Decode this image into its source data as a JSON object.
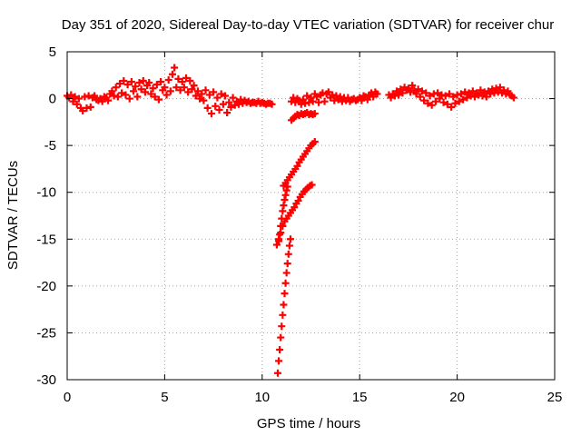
{
  "chart_data": {
    "type": "scatter",
    "title": "Day 351 of 2020, Sidereal Day-to-day VTEC variation (SDTVAR) for receiver chur",
    "xlabel": "GPS time / hours",
    "ylabel": "SDTVAR / TECUs",
    "xlim": [
      0,
      25
    ],
    "ylim": [
      -30,
      5
    ],
    "grid": true,
    "marker": "+",
    "color": "#ff0000",
    "x_ticks": [
      {
        "value": 0,
        "label": "0"
      },
      {
        "value": 5,
        "label": "5"
      },
      {
        "value": 10,
        "label": "10"
      },
      {
        "value": 15,
        "label": "15"
      },
      {
        "value": 20,
        "label": "20"
      },
      {
        "value": 25,
        "label": "25"
      }
    ],
    "y_ticks": [
      {
        "value": 5,
        "label": "5"
      },
      {
        "value": 0,
        "label": "0"
      },
      {
        "value": -5,
        "label": "-5"
      },
      {
        "value": -10,
        "label": "-10"
      },
      {
        "value": -15,
        "label": "-15"
      },
      {
        "value": -20,
        "label": "-20"
      },
      {
        "value": -25,
        "label": "-25"
      },
      {
        "value": -30,
        "label": "-30"
      }
    ],
    "series": [
      {
        "name": "SDTVAR",
        "points": [
          [
            0.0,
            0.3
          ],
          [
            0.1,
            0.1
          ],
          [
            0.2,
            0.4
          ],
          [
            0.3,
            -0.3
          ],
          [
            0.4,
            0.2
          ],
          [
            0.5,
            -0.6
          ],
          [
            0.6,
            0.0
          ],
          [
            0.7,
            -1.0
          ],
          [
            0.8,
            -1.3
          ],
          [
            0.9,
            0.2
          ],
          [
            1.0,
            -1.0
          ],
          [
            1.1,
            0.3
          ],
          [
            1.2,
            -0.9
          ],
          [
            1.3,
            0.1
          ],
          [
            1.4,
            0.3
          ],
          [
            1.5,
            -0.1
          ],
          [
            1.6,
            -0.2
          ],
          [
            1.7,
            0.0
          ],
          [
            1.8,
            -0.3
          ],
          [
            1.9,
            0.2
          ],
          [
            2.0,
            0.1
          ],
          [
            2.1,
            -0.2
          ],
          [
            2.2,
            0.5
          ],
          [
            2.3,
            0.8
          ],
          [
            2.4,
            0.3
          ],
          [
            2.5,
            1.2
          ],
          [
            2.6,
            0.2
          ],
          [
            2.7,
            1.6
          ],
          [
            2.8,
            0.6
          ],
          [
            2.9,
            1.9
          ],
          [
            3.0,
            0.4
          ],
          [
            3.1,
            1.5
          ],
          [
            3.2,
            0.0
          ],
          [
            3.3,
            1.8
          ],
          [
            3.4,
            0.8
          ],
          [
            3.5,
            1.3
          ],
          [
            3.6,
            0.2
          ],
          [
            3.7,
            1.7
          ],
          [
            3.8,
            1.0
          ],
          [
            3.9,
            1.9
          ],
          [
            4.0,
            0.7
          ],
          [
            4.1,
            1.4
          ],
          [
            4.2,
            1.7
          ],
          [
            4.3,
            0.5
          ],
          [
            4.4,
            1.1
          ],
          [
            4.5,
            0.2
          ],
          [
            4.6,
            1.5
          ],
          [
            4.7,
            -0.1
          ],
          [
            4.8,
            1.8
          ],
          [
            4.9,
            0.9
          ],
          [
            5.0,
            1.2
          ],
          [
            5.1,
            0.4
          ],
          [
            5.2,
            2.0
          ],
          [
            5.3,
            0.8
          ],
          [
            5.4,
            2.6
          ],
          [
            5.5,
            3.3
          ],
          [
            5.6,
            1.2
          ],
          [
            5.7,
            2.1
          ],
          [
            5.8,
            0.9
          ],
          [
            5.9,
            1.8
          ],
          [
            6.0,
            1.2
          ],
          [
            6.1,
            2.2
          ],
          [
            6.2,
            0.7
          ],
          [
            6.3,
            1.9
          ],
          [
            6.4,
            1.0
          ],
          [
            6.5,
            1.4
          ],
          [
            6.6,
            0.3
          ],
          [
            6.7,
            0.8
          ],
          [
            6.8,
            0.0
          ],
          [
            6.9,
            0.5
          ],
          [
            7.0,
            -0.2
          ],
          [
            7.1,
            0.9
          ],
          [
            7.2,
            -1.0
          ],
          [
            7.3,
            0.4
          ],
          [
            7.4,
            -1.6
          ],
          [
            7.5,
            0.7
          ],
          [
            7.6,
            -0.8
          ],
          [
            7.7,
            0.1
          ],
          [
            7.8,
            -1.2
          ],
          [
            7.9,
            0.5
          ],
          [
            8.0,
            -0.6
          ],
          [
            8.1,
            0.3
          ],
          [
            8.2,
            -1.5
          ],
          [
            8.3,
            -0.4
          ],
          [
            8.4,
            -0.9
          ],
          [
            8.5,
            0.1
          ],
          [
            8.6,
            -0.7
          ],
          [
            8.7,
            -0.3
          ],
          [
            8.8,
            -0.6
          ],
          [
            8.9,
            -0.1
          ],
          [
            9.0,
            -0.5
          ],
          [
            9.1,
            -0.2
          ],
          [
            9.2,
            -0.4
          ],
          [
            9.3,
            -0.3
          ],
          [
            9.4,
            -0.5
          ],
          [
            9.5,
            -0.4
          ],
          [
            9.6,
            -0.4
          ],
          [
            9.7,
            -0.5
          ],
          [
            9.8,
            -0.3
          ],
          [
            9.9,
            -0.5
          ],
          [
            10.0,
            -0.4
          ],
          [
            10.1,
            -0.5
          ],
          [
            10.2,
            -0.6
          ],
          [
            10.3,
            -0.5
          ],
          [
            10.4,
            -0.5
          ],
          [
            10.5,
            -0.6
          ],
          [
            10.8,
            -29.3
          ],
          [
            10.85,
            -28.0
          ],
          [
            10.9,
            -26.8
          ],
          [
            10.95,
            -25.5
          ],
          [
            11.0,
            -24.3
          ],
          [
            11.05,
            -23.1
          ],
          [
            11.1,
            -22.0
          ],
          [
            11.15,
            -20.8
          ],
          [
            11.2,
            -19.7
          ],
          [
            11.25,
            -18.6
          ],
          [
            11.3,
            -17.6
          ],
          [
            11.35,
            -16.6
          ],
          [
            11.4,
            -15.7
          ],
          [
            11.45,
            -15.0
          ],
          [
            10.75,
            -15.6
          ],
          [
            10.85,
            -15.0
          ],
          [
            10.95,
            -14.3
          ],
          [
            11.05,
            -13.6
          ],
          [
            11.15,
            -13.1
          ],
          [
            11.25,
            -12.8
          ],
          [
            11.35,
            -12.5
          ],
          [
            11.45,
            -12.2
          ],
          [
            11.55,
            -11.9
          ],
          [
            11.65,
            -11.6
          ],
          [
            11.75,
            -11.2
          ],
          [
            11.85,
            -10.9
          ],
          [
            11.95,
            -10.5
          ],
          [
            12.05,
            -10.2
          ],
          [
            12.15,
            -9.9
          ],
          [
            12.25,
            -9.7
          ],
          [
            12.35,
            -9.5
          ],
          [
            12.45,
            -9.3
          ],
          [
            12.55,
            -9.2
          ],
          [
            10.85,
            -15.2
          ],
          [
            10.9,
            -14.5
          ],
          [
            10.95,
            -13.6
          ],
          [
            11.0,
            -12.8
          ],
          [
            11.05,
            -12.0
          ],
          [
            11.1,
            -11.4
          ],
          [
            11.15,
            -10.8
          ],
          [
            11.2,
            -10.3
          ],
          [
            11.25,
            -9.8
          ],
          [
            11.3,
            -9.4
          ],
          [
            11.1,
            -9.3
          ],
          [
            11.2,
            -9.0
          ],
          [
            11.3,
            -8.7
          ],
          [
            11.4,
            -8.4
          ],
          [
            11.5,
            -8.1
          ],
          [
            11.6,
            -7.8
          ],
          [
            11.7,
            -7.5
          ],
          [
            11.8,
            -7.2
          ],
          [
            11.9,
            -6.8
          ],
          [
            12.0,
            -6.5
          ],
          [
            12.1,
            -6.2
          ],
          [
            12.2,
            -5.9
          ],
          [
            12.3,
            -5.6
          ],
          [
            12.4,
            -5.3
          ],
          [
            12.5,
            -5.0
          ],
          [
            12.6,
            -4.8
          ],
          [
            12.7,
            -4.6
          ],
          [
            11.5,
            -2.3
          ],
          [
            11.6,
            -2.1
          ],
          [
            11.7,
            -1.9
          ],
          [
            11.8,
            -1.7
          ],
          [
            11.9,
            -1.8
          ],
          [
            12.0,
            -1.6
          ],
          [
            12.1,
            -1.7
          ],
          [
            12.2,
            -1.6
          ],
          [
            12.3,
            -1.5
          ],
          [
            12.4,
            -1.7
          ],
          [
            12.5,
            -1.6
          ],
          [
            12.6,
            -1.7
          ],
          [
            12.7,
            -1.6
          ],
          [
            11.5,
            -0.3
          ],
          [
            11.6,
            0.1
          ],
          [
            11.7,
            -0.4
          ],
          [
            11.8,
            0.0
          ],
          [
            11.9,
            -0.2
          ],
          [
            12.0,
            -0.6
          ],
          [
            12.1,
            -0.1
          ],
          [
            12.2,
            -0.5
          ],
          [
            12.3,
            0.3
          ],
          [
            12.4,
            -0.4
          ],
          [
            12.5,
            0.1
          ],
          [
            12.6,
            -0.3
          ],
          [
            12.7,
            0.5
          ],
          [
            12.8,
            0.2
          ],
          [
            12.9,
            -0.4
          ],
          [
            13.0,
            0.4
          ],
          [
            13.1,
            0.6
          ],
          [
            13.2,
            -0.3
          ],
          [
            13.3,
            0.5
          ],
          [
            13.4,
            0.7
          ],
          [
            13.5,
            0.1
          ],
          [
            13.6,
            0.4
          ],
          [
            13.7,
            -0.2
          ],
          [
            13.8,
            0.3
          ],
          [
            13.9,
            -0.1
          ],
          [
            14.0,
            0.2
          ],
          [
            14.1,
            -0.3
          ],
          [
            14.2,
            0.1
          ],
          [
            14.3,
            -0.2
          ],
          [
            14.4,
            0.1
          ],
          [
            14.5,
            -0.3
          ],
          [
            14.6,
            -0.1
          ],
          [
            14.7,
            0.0
          ],
          [
            14.8,
            -0.2
          ],
          [
            14.9,
            -0.1
          ],
          [
            15.0,
            0.1
          ],
          [
            15.1,
            -0.2
          ],
          [
            15.2,
            0.3
          ],
          [
            15.3,
            0.2
          ],
          [
            15.4,
            -0.1
          ],
          [
            15.5,
            0.4
          ],
          [
            15.6,
            0.6
          ],
          [
            15.7,
            0.2
          ],
          [
            15.8,
            0.7
          ],
          [
            15.9,
            0.5
          ],
          [
            16.5,
            0.4
          ],
          [
            16.6,
            0.1
          ],
          [
            16.7,
            0.5
          ],
          [
            16.8,
            0.3
          ],
          [
            16.9,
            0.8
          ],
          [
            17.0,
            0.4
          ],
          [
            17.1,
            1.0
          ],
          [
            17.2,
            0.6
          ],
          [
            17.3,
            1.2
          ],
          [
            17.4,
            0.9
          ],
          [
            17.5,
            1.1
          ],
          [
            17.6,
            0.7
          ],
          [
            17.7,
            1.4
          ],
          [
            17.8,
            0.9
          ],
          [
            17.9,
            0.5
          ],
          [
            18.0,
            1.0
          ],
          [
            18.1,
            0.2
          ],
          [
            18.2,
            0.8
          ],
          [
            18.3,
            -0.2
          ],
          [
            18.4,
            0.6
          ],
          [
            18.5,
            -0.5
          ],
          [
            18.6,
            0.3
          ],
          [
            18.7,
            -0.7
          ],
          [
            18.8,
            0.5
          ],
          [
            18.9,
            -0.3
          ],
          [
            19.0,
            0.6
          ],
          [
            19.1,
            0.0
          ],
          [
            19.2,
            0.4
          ],
          [
            19.3,
            -0.4
          ],
          [
            19.4,
            0.3
          ],
          [
            19.5,
            -0.6
          ],
          [
            19.6,
            0.5
          ],
          [
            19.7,
            -0.9
          ],
          [
            19.8,
            0.2
          ],
          [
            19.9,
            -0.5
          ],
          [
            20.0,
            0.4
          ],
          [
            20.1,
            -0.3
          ],
          [
            20.2,
            0.5
          ],
          [
            20.3,
            -0.1
          ],
          [
            20.4,
            0.7
          ],
          [
            20.5,
            0.1
          ],
          [
            20.6,
            0.6
          ],
          [
            20.7,
            0.3
          ],
          [
            20.8,
            0.8
          ],
          [
            20.9,
            0.2
          ],
          [
            21.0,
            0.6
          ],
          [
            21.1,
            0.4
          ],
          [
            21.2,
            0.9
          ],
          [
            21.3,
            0.3
          ],
          [
            21.4,
            0.7
          ],
          [
            21.5,
            0.2
          ],
          [
            21.6,
            0.8
          ],
          [
            21.7,
            0.5
          ],
          [
            21.8,
            1.0
          ],
          [
            21.9,
            0.6
          ],
          [
            22.0,
            1.1
          ],
          [
            22.1,
            0.7
          ],
          [
            22.2,
            1.2
          ],
          [
            22.3,
            0.6
          ],
          [
            22.4,
            0.9
          ],
          [
            22.5,
            0.5
          ],
          [
            22.6,
            0.8
          ],
          [
            22.7,
            0.4
          ],
          [
            22.8,
            0.3
          ],
          [
            22.9,
            0.1
          ]
        ]
      }
    ]
  }
}
